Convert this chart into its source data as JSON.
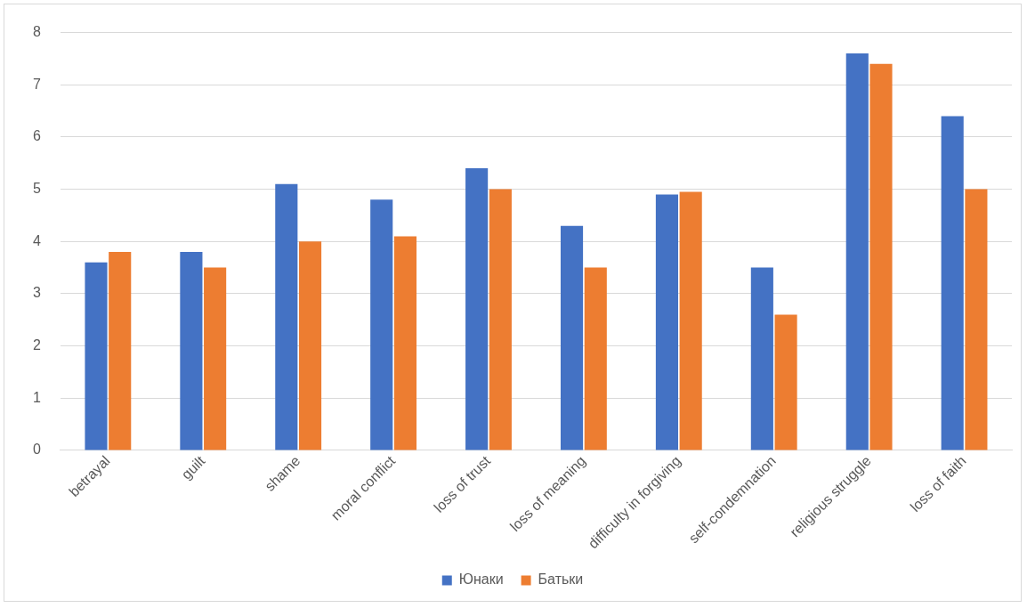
{
  "chart_data": {
    "type": "bar",
    "categories": [
      "betrayal",
      "guilt",
      "shame",
      "moral conflict",
      "loss of trust",
      "loss of meaning",
      "difficulty in forgiving",
      "self-condemnation",
      "religious struggle",
      "loss of faith"
    ],
    "series": [
      {
        "name": "Юнаки",
        "color": "#4472c4",
        "values": [
          3.6,
          3.8,
          5.1,
          4.8,
          5.4,
          4.3,
          4.9,
          3.5,
          7.6,
          6.4
        ]
      },
      {
        "name": "Батьки",
        "color": "#ed7d31",
        "values": [
          3.8,
          3.5,
          4.0,
          4.1,
          5.0,
          3.5,
          4.95,
          2.6,
          7.4,
          5.0
        ]
      }
    ],
    "ylim": [
      0,
      8
    ],
    "yticks": [
      0,
      1,
      2,
      3,
      4,
      5,
      6,
      7,
      8
    ],
    "grid": "y",
    "legend": "bottom"
  }
}
